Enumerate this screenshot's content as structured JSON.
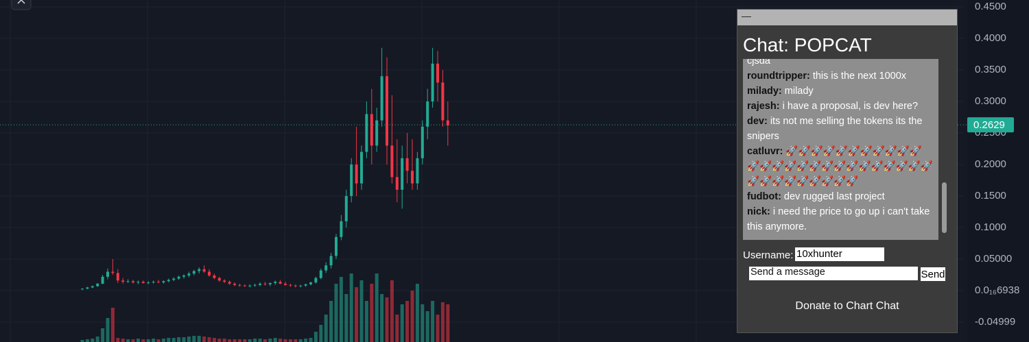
{
  "chart_data": {
    "type": "candlestick",
    "open": [
      0.002,
      0.003,
      0.005,
      0.007,
      0.011,
      0.022,
      0.03,
      0.028,
      0.016,
      0.014,
      0.015,
      0.013,
      0.014,
      0.012,
      0.013,
      0.014,
      0.013,
      0.015,
      0.017,
      0.019,
      0.022,
      0.024,
      0.027,
      0.031,
      0.034,
      0.03,
      0.024,
      0.02,
      0.016,
      0.014,
      0.011,
      0.009,
      0.008,
      0.007,
      0.008,
      0.009,
      0.011,
      0.01,
      0.012,
      0.014,
      0.011,
      0.009,
      0.008,
      0.007,
      0.008,
      0.01,
      0.013,
      0.02,
      0.032,
      0.04,
      0.055,
      0.085,
      0.11,
      0.15,
      0.2,
      0.17,
      0.22,
      0.28,
      0.23,
      0.27,
      0.34,
      0.23,
      0.18,
      0.16,
      0.21,
      0.19,
      0.17,
      0.21,
      0.26,
      0.3,
      0.36,
      0.33,
      0.27
    ],
    "high": [
      0.004,
      0.006,
      0.008,
      0.012,
      0.025,
      0.035,
      0.05,
      0.034,
      0.02,
      0.018,
      0.017,
      0.016,
      0.016,
      0.015,
      0.016,
      0.017,
      0.016,
      0.019,
      0.021,
      0.024,
      0.026,
      0.03,
      0.033,
      0.037,
      0.04,
      0.034,
      0.027,
      0.022,
      0.018,
      0.016,
      0.013,
      0.011,
      0.01,
      0.01,
      0.011,
      0.013,
      0.014,
      0.013,
      0.016,
      0.017,
      0.014,
      0.011,
      0.01,
      0.009,
      0.011,
      0.014,
      0.022,
      0.035,
      0.045,
      0.06,
      0.09,
      0.12,
      0.16,
      0.21,
      0.26,
      0.23,
      0.3,
      0.32,
      0.29,
      0.385,
      0.37,
      0.31,
      0.24,
      0.23,
      0.25,
      0.24,
      0.22,
      0.27,
      0.32,
      0.385,
      0.38,
      0.35,
      0.3
    ],
    "low": [
      0.001,
      0.002,
      0.004,
      0.006,
      0.01,
      0.018,
      0.025,
      0.012,
      0.011,
      0.012,
      0.011,
      0.01,
      0.011,
      0.01,
      0.011,
      0.012,
      0.011,
      0.013,
      0.015,
      0.017,
      0.019,
      0.021,
      0.024,
      0.027,
      0.028,
      0.022,
      0.018,
      0.014,
      0.012,
      0.009,
      0.007,
      0.006,
      0.006,
      0.005,
      0.006,
      0.007,
      0.008,
      0.007,
      0.009,
      0.01,
      0.008,
      0.006,
      0.005,
      0.005,
      0.006,
      0.008,
      0.011,
      0.018,
      0.028,
      0.035,
      0.05,
      0.08,
      0.1,
      0.14,
      0.15,
      0.16,
      0.21,
      0.2,
      0.22,
      0.26,
      0.2,
      0.17,
      0.14,
      0.13,
      0.17,
      0.16,
      0.16,
      0.2,
      0.24,
      0.29,
      0.3,
      0.26,
      0.23
    ],
    "close": [
      0.003,
      0.005,
      0.007,
      0.011,
      0.022,
      0.03,
      0.028,
      0.016,
      0.014,
      0.015,
      0.013,
      0.014,
      0.012,
      0.013,
      0.014,
      0.013,
      0.015,
      0.017,
      0.019,
      0.022,
      0.024,
      0.027,
      0.031,
      0.034,
      0.03,
      0.024,
      0.02,
      0.016,
      0.014,
      0.011,
      0.009,
      0.008,
      0.007,
      0.008,
      0.009,
      0.011,
      0.01,
      0.012,
      0.014,
      0.011,
      0.009,
      0.008,
      0.007,
      0.008,
      0.01,
      0.013,
      0.02,
      0.032,
      0.04,
      0.055,
      0.085,
      0.11,
      0.15,
      0.2,
      0.17,
      0.22,
      0.28,
      0.23,
      0.27,
      0.34,
      0.23,
      0.18,
      0.16,
      0.21,
      0.19,
      0.17,
      0.21,
      0.26,
      0.3,
      0.36,
      0.33,
      0.27,
      0.262
    ],
    "volumes": [
      3,
      4,
      5,
      8,
      20,
      35,
      50,
      6,
      5,
      4,
      4,
      5,
      4,
      4,
      5,
      4,
      5,
      6,
      6,
      7,
      7,
      8,
      9,
      9,
      8,
      7,
      6,
      5,
      5,
      4,
      4,
      4,
      4,
      4,
      5,
      5,
      4,
      5,
      6,
      5,
      4,
      4,
      4,
      4,
      5,
      6,
      15,
      25,
      40,
      60,
      85,
      95,
      70,
      100,
      80,
      90,
      60,
      85,
      100,
      70,
      65,
      90,
      40,
      55,
      60,
      75,
      85,
      55,
      45,
      60,
      40,
      58,
      55
    ],
    "ylim": [
      -0.0815,
      0.4609
    ],
    "yticks": [
      {
        "value": 0.45,
        "label": "0.4500"
      },
      {
        "value": 0.4,
        "label": "0.4000"
      },
      {
        "value": 0.35,
        "label": "0.3500"
      },
      {
        "value": 0.3,
        "label": "0.3000"
      },
      {
        "value": 0.25,
        "label": "0.2500"
      },
      {
        "value": 0.2,
        "label": "0.2000"
      },
      {
        "value": 0.15,
        "label": "0.1500"
      },
      {
        "value": 0.1,
        "label": "0.1000"
      },
      {
        "value": 0.05,
        "label": "0.05000"
      },
      {
        "value": 6.938e-17,
        "label": "0.0₁₆6938"
      },
      -0.04999
    ],
    "current_price": 0.2629,
    "grid": true,
    "up_color": "#22ab94",
    "down_color": "#f23645"
  },
  "chat": {
    "minimize": "—",
    "title": "Chat: POPCAT",
    "messages": [
      {
        "text": "cjsda"
      },
      {
        "user": "roundtripper:",
        "text": "this is the next 1000x"
      },
      {
        "user": "milady:",
        "text": "milady"
      },
      {
        "user": "rajesh:",
        "text": "i have a proposal, is dev here?"
      },
      {
        "user": "dev:",
        "text": "its not me selling the tokens its the snipers"
      },
      {
        "user": "catluvr:",
        "text": "🚀🚀🚀🚀🚀🚀🚀🚀🚀🚀🚀🚀🚀🚀🚀🚀🚀🚀🚀🚀🚀🚀🚀🚀🚀🚀🚀🚀🚀🚀🚀🚀🚀🚀🚀"
      },
      {
        "user": "fudbot:",
        "text": "dev rugged last project"
      },
      {
        "user": "nick:",
        "text": "i need the price to go up i can't take this anymore."
      }
    ],
    "username_label": "Username:",
    "username": "10xhunter",
    "message_placeholder": "Send a message",
    "send": "Send",
    "donate": "Donate to Chart Chat"
  }
}
